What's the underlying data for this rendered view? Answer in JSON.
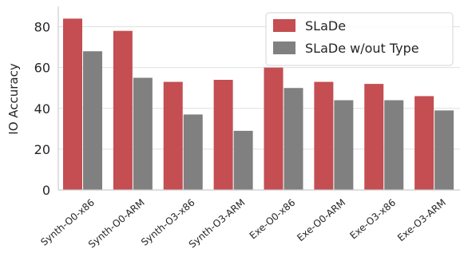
{
  "chart_data": {
    "type": "bar",
    "categories": [
      "Synth-O0-x86",
      "Synth-O0-ARM",
      "Synth-O3-x86",
      "Synth-O3-ARM",
      "Exe-O0-x86",
      "Exe-O0-ARM",
      "Exe-O3-x86",
      "Exe-O3-ARM"
    ],
    "series": [
      {
        "name": "SLaDe",
        "color": "#c44e52",
        "values": [
          84,
          78,
          53,
          54,
          60,
          53,
          52,
          46
        ]
      },
      {
        "name": "SLaDe w/out Type",
        "color": "#808080",
        "values": [
          68,
          55,
          37,
          29,
          50,
          44,
          44,
          39
        ]
      }
    ],
    "xlabel": "",
    "ylabel": "IO Accuracy",
    "ylim": [
      0,
      90
    ],
    "yticks": [
      0,
      20,
      40,
      60,
      80
    ],
    "grid": "horizontal",
    "legend_position": "top-right"
  }
}
